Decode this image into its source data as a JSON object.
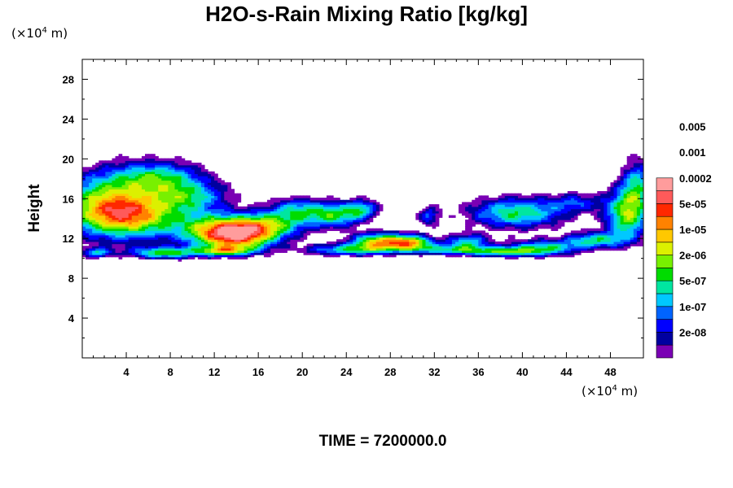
{
  "chart_data": {
    "type": "heatmap",
    "title": "H2O-s-Rain Mixing Ratio [kg/kg]",
    "ylabel": "Height",
    "x_unit": {
      "prefix": "(×10",
      "exp": "4",
      "suffix": " m)"
    },
    "y_unit": {
      "prefix": "(×10",
      "exp": "4",
      "suffix": " m)"
    },
    "xlim": [
      0,
      51
    ],
    "ylim": [
      0,
      30
    ],
    "x_ticks": [
      "4",
      "8",
      "12",
      "16",
      "20",
      "24",
      "28",
      "32",
      "36",
      "40",
      "44",
      "48"
    ],
    "y_ticks": [
      "4",
      "8",
      "12",
      "16",
      "20",
      "24",
      "28"
    ],
    "legend": {
      "levels": [
        "2e-08",
        "1e-07",
        "5e-07",
        "2e-06",
        "1e-05",
        "5e-05",
        "0.0002",
        "0.001",
        "0.005"
      ],
      "colors": [
        "#7a00b4",
        "#0000a0",
        "#0000ff",
        "#0064ff",
        "#00c8ff",
        "#00e6a0",
        "#00dc00",
        "#78f000",
        "#dcf000",
        "#ffc800",
        "#ff8200",
        "#ff2800",
        "#ff5a5a",
        "#ff9c9c"
      ]
    },
    "footer": "TIME = 7200000.0"
  }
}
